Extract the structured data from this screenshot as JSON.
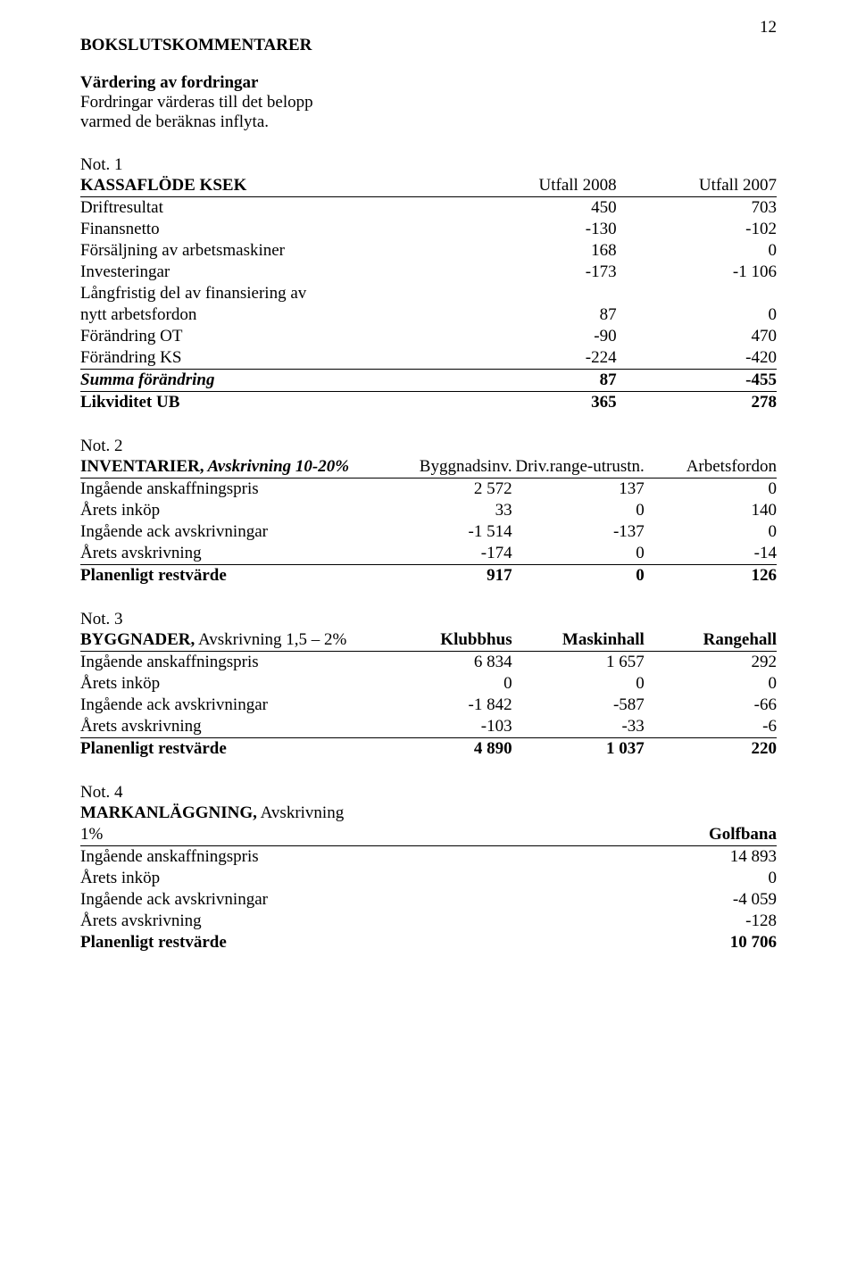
{
  "page_number": "12",
  "title": "BOKSLUTSKOMMENTARER",
  "intro": {
    "heading": "Värdering av fordringar",
    "line1": "Fordringar värderas till det belopp",
    "line2": "varmed de beräknas inflyta."
  },
  "note1": {
    "label": "Not. 1",
    "heading": "KASSAFLÖDE KSEK",
    "col1": "Utfall 2008",
    "col2": "Utfall 2007",
    "rows": [
      {
        "label": "Driftresultat",
        "v1": "450",
        "v2": "703"
      },
      {
        "label": "Finansnetto",
        "v1": "-130",
        "v2": "-102"
      },
      {
        "label": "Försäljning av arbetsmaskiner",
        "v1": "168",
        "v2": "0"
      },
      {
        "label": "Investeringar",
        "v1": "-173",
        "v2": "-1 106"
      },
      {
        "label": "Långfristig del av finansiering av",
        "v1": "",
        "v2": ""
      },
      {
        "label": "nytt arbetsfordon",
        "v1": "87",
        "v2": "0"
      },
      {
        "label": "Förändring OT",
        "v1": "-90",
        "v2": "470"
      },
      {
        "label": "Förändring KS",
        "v1": "-224",
        "v2": "-420"
      }
    ],
    "sum": {
      "label": "Summa förändring",
      "v1": "87",
      "v2": "-455"
    },
    "result": {
      "label": "Likviditet UB",
      "v1": "365",
      "v2": "278"
    }
  },
  "note2": {
    "label": "Not. 2",
    "heading": "INVENTARIER,",
    "heading_italic": " Avskrivning 10-20%",
    "col1": "Byggnadsinv.",
    "col2": "Driv.range-utrustn.",
    "col3": "Arbetsfordon",
    "rows": [
      {
        "label": "Ingående anskaffningspris",
        "v1": "2 572",
        "v2": "137",
        "v3": "0"
      },
      {
        "label": "Årets inköp",
        "v1": "33",
        "v2": "0",
        "v3": "140"
      },
      {
        "label": "Ingående ack avskrivningar",
        "v1": "-1 514",
        "v2": "-137",
        "v3": "0"
      },
      {
        "label": "Årets avskrivning",
        "v1": "-174",
        "v2": "0",
        "v3": "-14"
      }
    ],
    "result": {
      "label": "Planenligt restvärde",
      "v1": "917",
      "v2": "0",
      "v3": "126"
    }
  },
  "note3": {
    "label": "Not. 3",
    "heading": "BYGGNADER,",
    "heading_tail": " Avskrivning 1,5 – 2%",
    "col1": "Klubbhus",
    "col2": "Maskinhall",
    "col3": "Rangehall",
    "rows": [
      {
        "label": "Ingående anskaffningspris",
        "v1": "6 834",
        "v2": "1 657",
        "v3": "292"
      },
      {
        "label": "Årets inköp",
        "v1": "0",
        "v2": "0",
        "v3": "0"
      },
      {
        "label": "Ingående ack avskrivningar",
        "v1": "-1 842",
        "v2": "-587",
        "v3": "-66"
      },
      {
        "label": "Årets avskrivning",
        "v1": "-103",
        "v2": "-33",
        "v3": "-6"
      }
    ],
    "result": {
      "label": "Planenligt restvärde",
      "v1": "4 890",
      "v2": "1 037",
      "v3": "220"
    }
  },
  "note4": {
    "label": "Not. 4",
    "heading": "MARKANLÄGGNING,",
    "heading_tail_line": " Avskrivning",
    "heading_second_line": "1%",
    "col1": "Golfbana",
    "rows": [
      {
        "label": "Ingående anskaffningspris",
        "v1": "14 893"
      },
      {
        "label": "Årets inköp",
        "v1": "0"
      },
      {
        "label": "Ingående ack avskrivningar",
        "v1": "-4 059"
      },
      {
        "label": "Årets avskrivning",
        "v1": "-128"
      }
    ],
    "result": {
      "label": "Planenligt restvärde",
      "v1": "10 706"
    }
  }
}
